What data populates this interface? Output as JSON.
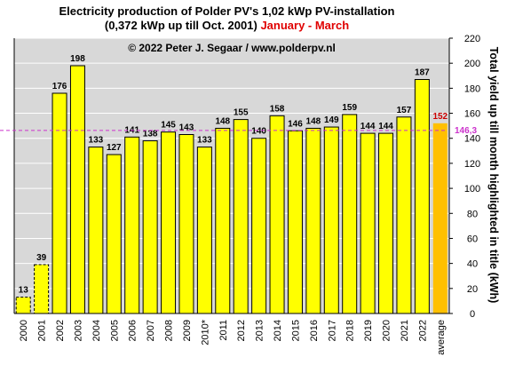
{
  "chart_data": {
    "type": "bar",
    "title_line1": "Electricity production  of Polder  PV's  1,02 kWp PV-installation",
    "title_line2": "(0,372 kWp up till Oct. 2001)",
    "title_highlight": "January - March",
    "watermark": "© 2022 Peter J. Segaar / www.polderpv.nl",
    "ylabel": "Total yield up till month highlighted in title (kWh)",
    "ylim": [
      0,
      220
    ],
    "yticks": [
      0,
      20,
      40,
      60,
      80,
      100,
      120,
      140,
      160,
      180,
      200,
      220
    ],
    "grid": true,
    "categories": [
      "2000",
      "2001",
      "2002",
      "2003",
      "2004",
      "2005",
      "2006",
      "2007",
      "2008",
      "2009",
      "2010*",
      "2011",
      "2012",
      "2013",
      "2014",
      "2015",
      "2016",
      "2017",
      "2018",
      "2019",
      "2020",
      "2021",
      "2022",
      "average"
    ],
    "values": [
      13,
      39,
      176,
      198,
      133,
      127,
      141,
      138,
      145,
      143,
      133,
      148,
      155,
      140,
      158,
      146,
      148,
      149,
      159,
      144,
      144,
      157,
      187,
      152
    ],
    "dashed_bars": [
      "2000",
      "2001"
    ],
    "average_line": {
      "value": 146.3,
      "label": "146,3"
    },
    "colors": {
      "bar": "#ffff00",
      "average_bar": "#ffc000",
      "average_label": "#cc0000",
      "average_line": "#cc33cc",
      "plot_background": "#d8d8d8",
      "highlight": "#e00000"
    }
  }
}
